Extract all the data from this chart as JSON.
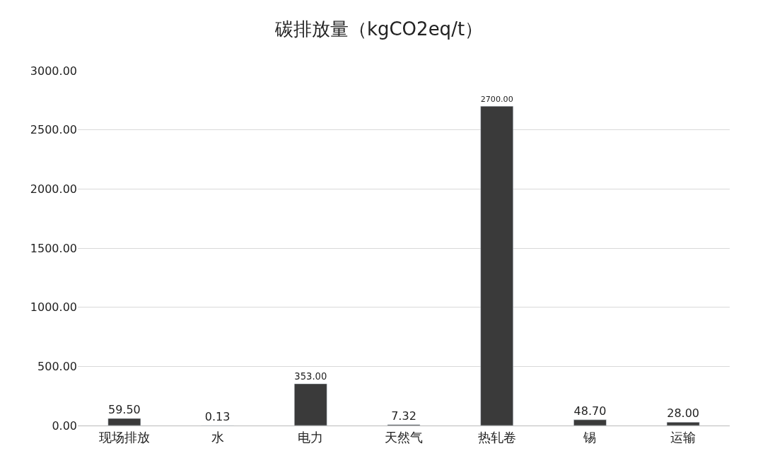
{
  "chart_data": {
    "type": "bar",
    "title": "碳排放量（kgCO2eq/t）",
    "categories": [
      "现场排放",
      "水",
      "电力",
      "天然气",
      "热轧卷",
      "锡",
      "运输"
    ],
    "values": [
      59.5,
      0.13,
      353,
      7.32,
      2700,
      48.7,
      28
    ],
    "value_labels": [
      "59.50",
      "0.13",
      "353.00",
      "7.32",
      "2700.00",
      "48.70",
      "28.00"
    ],
    "color": "#3a3a3a",
    "ylim": [
      0,
      3000
    ],
    "yticks": [
      {
        "value": 0,
        "label": "0.00"
      },
      {
        "value": 500,
        "label": "500.00"
      },
      {
        "value": 1000,
        "label": "1000.00"
      },
      {
        "value": 1500,
        "label": "1500.00"
      },
      {
        "value": 2000,
        "label": "2000.00"
      },
      {
        "value": 2500,
        "label": "2500.00"
      },
      {
        "value": 3000,
        "label": "3000.00"
      }
    ],
    "grid": "y",
    "legend": false
  }
}
